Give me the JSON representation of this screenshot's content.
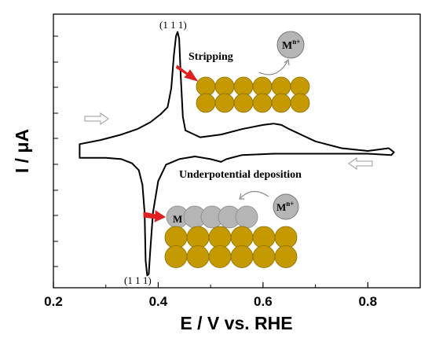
{
  "chart_data": {
    "type": "line",
    "title": "",
    "xlabel": "E / V vs. RHE",
    "ylabel": "I / μA",
    "xlim": [
      0.2,
      0.9
    ],
    "ylim": [
      -1.0,
      1.0
    ],
    "xticks": [
      "0.2",
      "0.4",
      "0.6",
      "0.8"
    ],
    "xtick_values": [
      0.2,
      0.4,
      0.6,
      0.8
    ],
    "grid": false,
    "legend": "none",
    "series": [
      {
        "name": "",
        "color": "#000000",
        "x": [
          0.25,
          0.29,
          0.33,
          0.36,
          0.385,
          0.405,
          0.418,
          0.425,
          0.43,
          0.434,
          0.437,
          0.44,
          0.443,
          0.447,
          0.452,
          0.48,
          0.52,
          0.56,
          0.6,
          0.62,
          0.635,
          0.65,
          0.7,
          0.75,
          0.8,
          0.84,
          0.85,
          0.845,
          0.8,
          0.7,
          0.62,
          0.56,
          0.53,
          0.52,
          0.5,
          0.47,
          0.44,
          0.415,
          0.4,
          0.39,
          0.385,
          0.382,
          0.379,
          0.376,
          0.374,
          0.37,
          0.363,
          0.35,
          0.33,
          0.3,
          0.27,
          0.25
        ],
        "y": [
          0.05,
          0.08,
          0.12,
          0.16,
          0.21,
          0.27,
          0.32,
          0.46,
          0.7,
          0.84,
          0.87,
          0.82,
          0.55,
          0.25,
          0.15,
          0.1,
          0.12,
          0.16,
          0.19,
          0.2,
          0.19,
          0.16,
          0.07,
          0.02,
          0.0,
          0.02,
          -0.01,
          -0.03,
          -0.02,
          -0.02,
          -0.02,
          -0.03,
          -0.06,
          -0.08,
          -0.06,
          -0.04,
          -0.06,
          -0.1,
          -0.22,
          -0.45,
          -0.72,
          -0.9,
          -0.91,
          -0.8,
          -0.45,
          -0.25,
          -0.14,
          -0.09,
          -0.06,
          -0.05,
          -0.05,
          -0.05
        ]
      }
    ],
    "annotations": [
      {
        "text": "(1 1 1)",
        "x": 0.43,
        "y": 0.92,
        "kind": "peak-label"
      },
      {
        "text": "(1 1 1)",
        "x": 0.36,
        "y": -0.99,
        "kind": "peak-label"
      },
      {
        "text": "Stripping",
        "x": 0.485,
        "y": 0.69,
        "kind": "caption"
      },
      {
        "text": "Underpotential deposition",
        "x": 0.5,
        "y": -0.27,
        "kind": "caption"
      }
    ],
    "insets": {
      "stripping": {
        "ion_label": "M",
        "ion_charge": "n+"
      },
      "deposition": {
        "adatom_label": "M",
        "ion_label": "M",
        "ion_charge": "n+"
      }
    },
    "colors": {
      "gold": "#C49A00",
      "gold_edge": "#8B6D00",
      "gray": "#B5B5B5",
      "arrow": "#E02020"
    }
  }
}
